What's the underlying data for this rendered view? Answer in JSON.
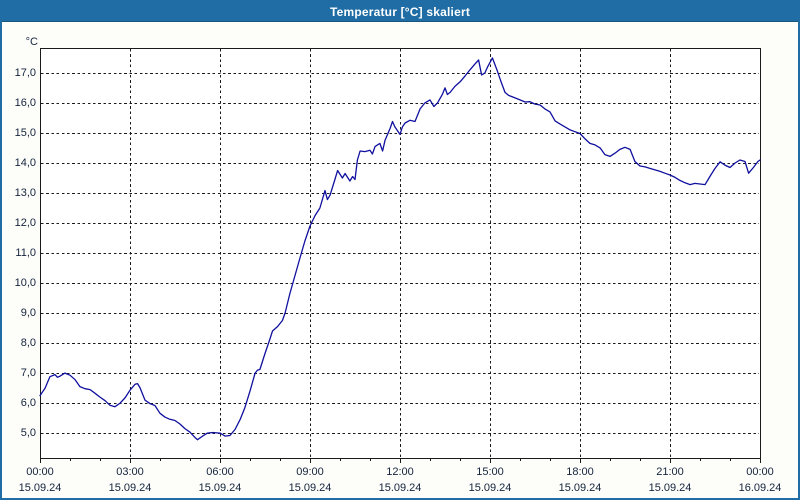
{
  "window": {
    "title": "Temperatur [°C] skaliert",
    "title_bar_color": "#1f6da4",
    "border_color": "#1f6da4",
    "background_color": "#fdfdfa"
  },
  "chart_data": {
    "type": "line",
    "title": "Temperatur [°C] skaliert",
    "unit_label": "°C",
    "grid": "dashed",
    "legend": "none",
    "line_color": "#10109f",
    "axis_color": "#1a1a1a",
    "plot_background": "#ffffff",
    "xlim_hours": [
      0,
      24
    ],
    "ylim": [
      4.17,
      17.83
    ],
    "x_minor_tick_every_hours": 1,
    "y_ticks": [
      {
        "value": 17,
        "label": "17,0"
      },
      {
        "value": 16,
        "label": "16,0"
      },
      {
        "value": 15,
        "label": "15,0"
      },
      {
        "value": 14,
        "label": "14,0"
      },
      {
        "value": 13,
        "label": "13,0"
      },
      {
        "value": 12,
        "label": "12,0"
      },
      {
        "value": 11,
        "label": "11,0"
      },
      {
        "value": 10,
        "label": "10,0"
      },
      {
        "value": 9,
        "label": "9,0"
      },
      {
        "value": 8,
        "label": "8,0"
      },
      {
        "value": 7,
        "label": "7,0"
      },
      {
        "value": 6,
        "label": "6,0"
      },
      {
        "value": 5,
        "label": "5,0"
      }
    ],
    "x_ticks": [
      {
        "hour": 0,
        "time": "00:00",
        "date": "15.09.24"
      },
      {
        "hour": 3,
        "time": "03:00",
        "date": "15.09.24"
      },
      {
        "hour": 6,
        "time": "06:00",
        "date": "15.09.24"
      },
      {
        "hour": 9,
        "time": "09:00",
        "date": "15.09.24"
      },
      {
        "hour": 12,
        "time": "12:00",
        "date": "15.09.24"
      },
      {
        "hour": 15,
        "time": "15:00",
        "date": "15.09.24"
      },
      {
        "hour": 18,
        "time": "18:00",
        "date": "15.09.24"
      },
      {
        "hour": 21,
        "time": "21:00",
        "date": "15.09.24"
      },
      {
        "hour": 24,
        "time": "00:00",
        "date": "16.09.24"
      }
    ],
    "series": [
      {
        "name": "Temperatur",
        "points": [
          [
            0,
            6.25
          ],
          [
            0.17,
            6.5
          ],
          [
            0.33,
            6.88
          ],
          [
            0.5,
            6.95
          ],
          [
            0.58,
            6.86
          ],
          [
            0.67,
            6.9
          ],
          [
            0.75,
            6.95
          ],
          [
            0.83,
            7.0
          ],
          [
            1.0,
            6.93
          ],
          [
            1.17,
            6.78
          ],
          [
            1.33,
            6.55
          ],
          [
            1.5,
            6.48
          ],
          [
            1.67,
            6.45
          ],
          [
            1.83,
            6.33
          ],
          [
            2.0,
            6.2
          ],
          [
            2.17,
            6.08
          ],
          [
            2.33,
            5.93
          ],
          [
            2.5,
            5.88
          ],
          [
            2.67,
            6.0
          ],
          [
            2.83,
            6.17
          ],
          [
            3.0,
            6.43
          ],
          [
            3.17,
            6.63
          ],
          [
            3.25,
            6.65
          ],
          [
            3.33,
            6.52
          ],
          [
            3.5,
            6.1
          ],
          [
            3.67,
            5.98
          ],
          [
            3.83,
            5.92
          ],
          [
            4.0,
            5.66
          ],
          [
            4.17,
            5.53
          ],
          [
            4.33,
            5.46
          ],
          [
            4.5,
            5.42
          ],
          [
            4.67,
            5.3
          ],
          [
            4.83,
            5.15
          ],
          [
            5.0,
            5.03
          ],
          [
            5.17,
            4.85
          ],
          [
            5.25,
            4.78
          ],
          [
            5.42,
            4.9
          ],
          [
            5.58,
            5.0
          ],
          [
            5.75,
            5.02
          ],
          [
            6.0,
            5.0
          ],
          [
            6.17,
            4.9
          ],
          [
            6.33,
            4.92
          ],
          [
            6.5,
            5.12
          ],
          [
            6.67,
            5.45
          ],
          [
            6.83,
            5.85
          ],
          [
            7.0,
            6.4
          ],
          [
            7.17,
            7.0
          ],
          [
            7.25,
            7.1
          ],
          [
            7.33,
            7.12
          ],
          [
            7.5,
            7.65
          ],
          [
            7.67,
            8.15
          ],
          [
            7.75,
            8.4
          ],
          [
            7.92,
            8.55
          ],
          [
            8.08,
            8.75
          ],
          [
            8.17,
            9.0
          ],
          [
            8.33,
            9.65
          ],
          [
            8.5,
            10.25
          ],
          [
            8.67,
            10.85
          ],
          [
            8.83,
            11.4
          ],
          [
            9.0,
            11.9
          ],
          [
            9.17,
            12.25
          ],
          [
            9.33,
            12.5
          ],
          [
            9.5,
            13.08
          ],
          [
            9.58,
            12.78
          ],
          [
            9.67,
            12.93
          ],
          [
            9.83,
            13.45
          ],
          [
            9.92,
            13.75
          ],
          [
            10.08,
            13.5
          ],
          [
            10.17,
            13.65
          ],
          [
            10.33,
            13.4
          ],
          [
            10.42,
            13.55
          ],
          [
            10.5,
            13.45
          ],
          [
            10.58,
            14.1
          ],
          [
            10.67,
            14.4
          ],
          [
            10.83,
            14.38
          ],
          [
            11.0,
            14.42
          ],
          [
            11.08,
            14.3
          ],
          [
            11.17,
            14.55
          ],
          [
            11.33,
            14.65
          ],
          [
            11.42,
            14.4
          ],
          [
            11.5,
            14.75
          ],
          [
            11.67,
            15.15
          ],
          [
            11.75,
            15.38
          ],
          [
            11.83,
            15.2
          ],
          [
            12.0,
            14.95
          ],
          [
            12.08,
            15.2
          ],
          [
            12.17,
            15.33
          ],
          [
            12.33,
            15.42
          ],
          [
            12.5,
            15.38
          ],
          [
            12.67,
            15.8
          ],
          [
            12.83,
            16.0
          ],
          [
            13.0,
            16.1
          ],
          [
            13.13,
            15.88
          ],
          [
            13.25,
            16.0
          ],
          [
            13.42,
            16.3
          ],
          [
            13.5,
            16.5
          ],
          [
            13.58,
            16.28
          ],
          [
            13.67,
            16.35
          ],
          [
            13.83,
            16.55
          ],
          [
            14.0,
            16.7
          ],
          [
            14.17,
            16.9
          ],
          [
            14.33,
            17.1
          ],
          [
            14.5,
            17.3
          ],
          [
            14.62,
            17.43
          ],
          [
            14.72,
            16.93
          ],
          [
            14.83,
            17.0
          ],
          [
            14.92,
            17.2
          ],
          [
            15.08,
            17.5
          ],
          [
            15.25,
            17.05
          ],
          [
            15.37,
            16.7
          ],
          [
            15.5,
            16.35
          ],
          [
            15.62,
            16.25
          ],
          [
            15.75,
            16.2
          ],
          [
            16.0,
            16.1
          ],
          [
            16.17,
            16.03
          ],
          [
            16.33,
            16.04
          ],
          [
            16.5,
            15.96
          ],
          [
            16.67,
            15.93
          ],
          [
            16.83,
            15.8
          ],
          [
            17.0,
            15.7
          ],
          [
            17.17,
            15.4
          ],
          [
            17.33,
            15.3
          ],
          [
            17.5,
            15.2
          ],
          [
            17.67,
            15.1
          ],
          [
            17.83,
            15.04
          ],
          [
            18.0,
            14.98
          ],
          [
            18.17,
            14.8
          ],
          [
            18.33,
            14.65
          ],
          [
            18.5,
            14.6
          ],
          [
            18.67,
            14.5
          ],
          [
            18.83,
            14.28
          ],
          [
            19.0,
            14.22
          ],
          [
            19.17,
            14.33
          ],
          [
            19.33,
            14.45
          ],
          [
            19.5,
            14.52
          ],
          [
            19.67,
            14.45
          ],
          [
            19.83,
            14.05
          ],
          [
            20.0,
            13.9
          ],
          [
            20.17,
            13.87
          ],
          [
            20.33,
            13.82
          ],
          [
            20.5,
            13.77
          ],
          [
            20.67,
            13.72
          ],
          [
            20.83,
            13.66
          ],
          [
            21.0,
            13.6
          ],
          [
            21.17,
            13.52
          ],
          [
            21.33,
            13.42
          ],
          [
            21.5,
            13.34
          ],
          [
            21.67,
            13.28
          ],
          [
            21.83,
            13.32
          ],
          [
            22.0,
            13.3
          ],
          [
            22.17,
            13.28
          ],
          [
            22.33,
            13.55
          ],
          [
            22.5,
            13.82
          ],
          [
            22.67,
            14.04
          ],
          [
            22.83,
            13.93
          ],
          [
            23.0,
            13.85
          ],
          [
            23.17,
            14.0
          ],
          [
            23.33,
            14.1
          ],
          [
            23.5,
            14.05
          ],
          [
            23.62,
            13.66
          ],
          [
            23.78,
            13.85
          ],
          [
            23.93,
            14.05
          ],
          [
            24.0,
            14.1
          ]
        ]
      }
    ]
  }
}
